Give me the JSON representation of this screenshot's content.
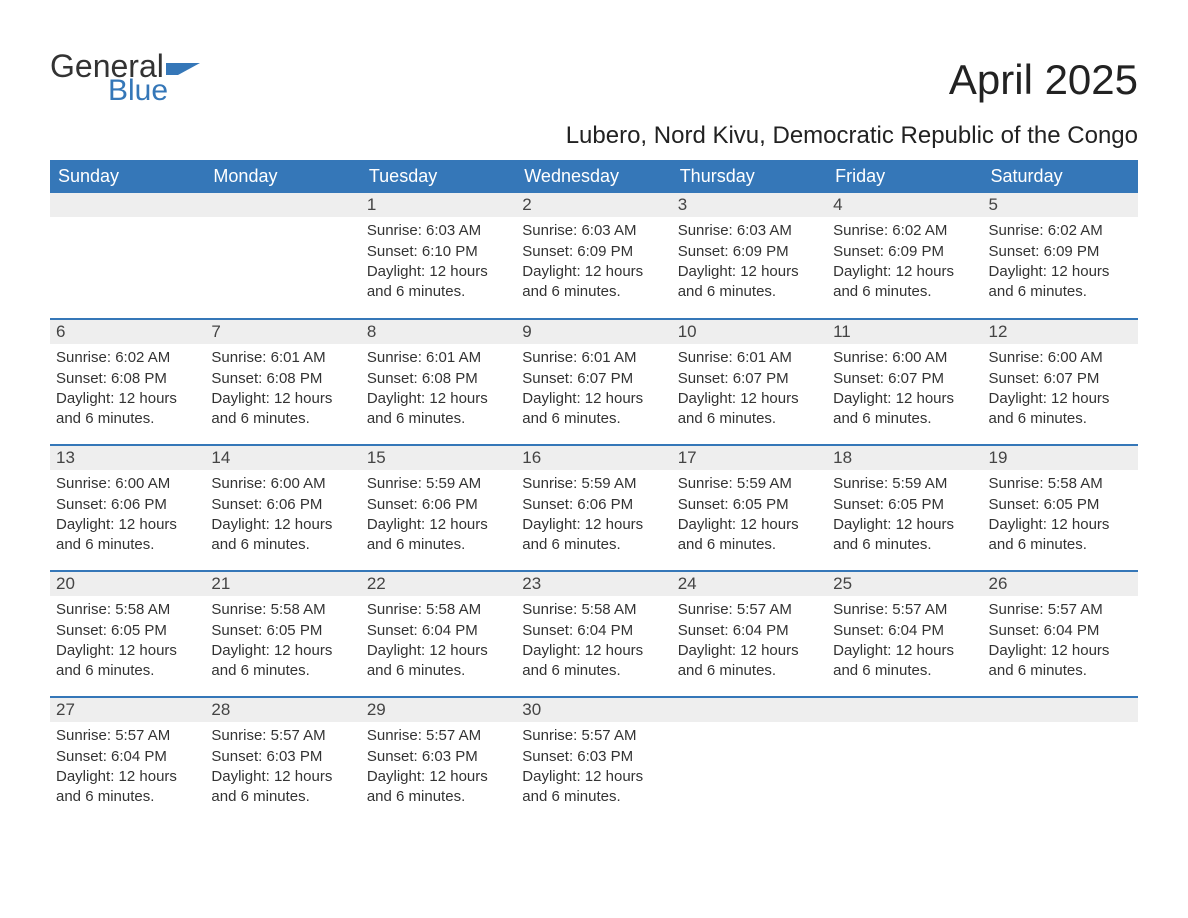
{
  "logo": {
    "text1": "General",
    "text2": "Blue",
    "color_general": "#333333",
    "color_blue": "#3577b8"
  },
  "title": "April 2025",
  "subtitle": "Lubero, Nord Kivu, Democratic Republic of the Congo",
  "colors": {
    "header_bg": "#3577b8",
    "header_text": "#ffffff",
    "daynum_bg": "#eeeeee",
    "week_border": "#3577b8",
    "body_text": "#2b2b2b",
    "page_bg": "#ffffff"
  },
  "day_headers": [
    "Sunday",
    "Monday",
    "Tuesday",
    "Wednesday",
    "Thursday",
    "Friday",
    "Saturday"
  ],
  "labels": {
    "sunrise_prefix": "Sunrise: ",
    "sunset_prefix": "Sunset: ",
    "daylight_prefix": "Daylight: ",
    "daylight_suffix": "."
  },
  "weeks": [
    [
      null,
      null,
      {
        "n": "1",
        "sunrise": "6:03 AM",
        "sunset": "6:10 PM",
        "daylight": "12 hours and 6 minutes"
      },
      {
        "n": "2",
        "sunrise": "6:03 AM",
        "sunset": "6:09 PM",
        "daylight": "12 hours and 6 minutes"
      },
      {
        "n": "3",
        "sunrise": "6:03 AM",
        "sunset": "6:09 PM",
        "daylight": "12 hours and 6 minutes"
      },
      {
        "n": "4",
        "sunrise": "6:02 AM",
        "sunset": "6:09 PM",
        "daylight": "12 hours and 6 minutes"
      },
      {
        "n": "5",
        "sunrise": "6:02 AM",
        "sunset": "6:09 PM",
        "daylight": "12 hours and 6 minutes"
      }
    ],
    [
      {
        "n": "6",
        "sunrise": "6:02 AM",
        "sunset": "6:08 PM",
        "daylight": "12 hours and 6 minutes"
      },
      {
        "n": "7",
        "sunrise": "6:01 AM",
        "sunset": "6:08 PM",
        "daylight": "12 hours and 6 minutes"
      },
      {
        "n": "8",
        "sunrise": "6:01 AM",
        "sunset": "6:08 PM",
        "daylight": "12 hours and 6 minutes"
      },
      {
        "n": "9",
        "sunrise": "6:01 AM",
        "sunset": "6:07 PM",
        "daylight": "12 hours and 6 minutes"
      },
      {
        "n": "10",
        "sunrise": "6:01 AM",
        "sunset": "6:07 PM",
        "daylight": "12 hours and 6 minutes"
      },
      {
        "n": "11",
        "sunrise": "6:00 AM",
        "sunset": "6:07 PM",
        "daylight": "12 hours and 6 minutes"
      },
      {
        "n": "12",
        "sunrise": "6:00 AM",
        "sunset": "6:07 PM",
        "daylight": "12 hours and 6 minutes"
      }
    ],
    [
      {
        "n": "13",
        "sunrise": "6:00 AM",
        "sunset": "6:06 PM",
        "daylight": "12 hours and 6 minutes"
      },
      {
        "n": "14",
        "sunrise": "6:00 AM",
        "sunset": "6:06 PM",
        "daylight": "12 hours and 6 minutes"
      },
      {
        "n": "15",
        "sunrise": "5:59 AM",
        "sunset": "6:06 PM",
        "daylight": "12 hours and 6 minutes"
      },
      {
        "n": "16",
        "sunrise": "5:59 AM",
        "sunset": "6:06 PM",
        "daylight": "12 hours and 6 minutes"
      },
      {
        "n": "17",
        "sunrise": "5:59 AM",
        "sunset": "6:05 PM",
        "daylight": "12 hours and 6 minutes"
      },
      {
        "n": "18",
        "sunrise": "5:59 AM",
        "sunset": "6:05 PM",
        "daylight": "12 hours and 6 minutes"
      },
      {
        "n": "19",
        "sunrise": "5:58 AM",
        "sunset": "6:05 PM",
        "daylight": "12 hours and 6 minutes"
      }
    ],
    [
      {
        "n": "20",
        "sunrise": "5:58 AM",
        "sunset": "6:05 PM",
        "daylight": "12 hours and 6 minutes"
      },
      {
        "n": "21",
        "sunrise": "5:58 AM",
        "sunset": "6:05 PM",
        "daylight": "12 hours and 6 minutes"
      },
      {
        "n": "22",
        "sunrise": "5:58 AM",
        "sunset": "6:04 PM",
        "daylight": "12 hours and 6 minutes"
      },
      {
        "n": "23",
        "sunrise": "5:58 AM",
        "sunset": "6:04 PM",
        "daylight": "12 hours and 6 minutes"
      },
      {
        "n": "24",
        "sunrise": "5:57 AM",
        "sunset": "6:04 PM",
        "daylight": "12 hours and 6 minutes"
      },
      {
        "n": "25",
        "sunrise": "5:57 AM",
        "sunset": "6:04 PM",
        "daylight": "12 hours and 6 minutes"
      },
      {
        "n": "26",
        "sunrise": "5:57 AM",
        "sunset": "6:04 PM",
        "daylight": "12 hours and 6 minutes"
      }
    ],
    [
      {
        "n": "27",
        "sunrise": "5:57 AM",
        "sunset": "6:04 PM",
        "daylight": "12 hours and 6 minutes"
      },
      {
        "n": "28",
        "sunrise": "5:57 AM",
        "sunset": "6:03 PM",
        "daylight": "12 hours and 6 minutes"
      },
      {
        "n": "29",
        "sunrise": "5:57 AM",
        "sunset": "6:03 PM",
        "daylight": "12 hours and 6 minutes"
      },
      {
        "n": "30",
        "sunrise": "5:57 AM",
        "sunset": "6:03 PM",
        "daylight": "12 hours and 6 minutes"
      },
      null,
      null,
      null
    ]
  ]
}
